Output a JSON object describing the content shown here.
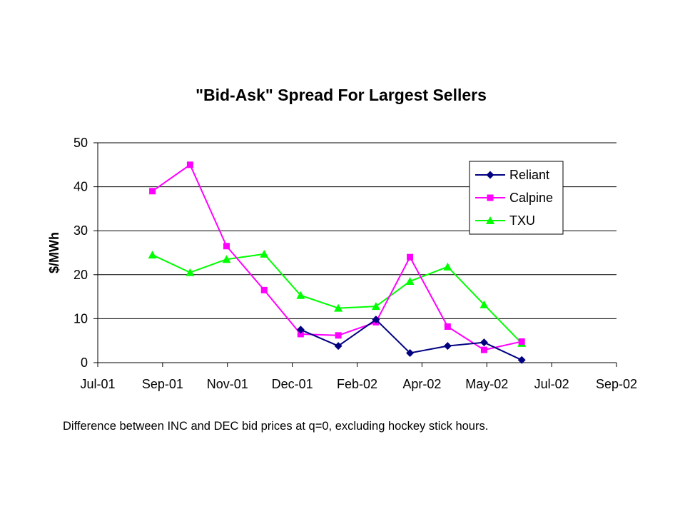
{
  "chart_data": {
    "type": "line",
    "title": "\"Bid-Ask\" Spread For Largest Sellers",
    "xlabel": "",
    "ylabel": "$/MWh",
    "x_ticks": [
      "Jul-01",
      "Sep-01",
      "Nov-01",
      "Dec-01",
      "Feb-02",
      "Apr-02",
      "May-02",
      "Jul-02",
      "Sep-02"
    ],
    "x_range": [
      "2001-07-01",
      "2002-09-01"
    ],
    "ylim": [
      0,
      50
    ],
    "y_ticks": [
      0,
      10,
      20,
      30,
      40,
      50
    ],
    "grid": "horizontal",
    "legend_position": "top-right",
    "x": [
      "2001-08-15",
      "2001-09-15",
      "2001-10-15",
      "2001-11-15",
      "2001-12-15",
      "2002-01-15",
      "2002-02-15",
      "2002-03-15",
      "2002-04-15",
      "2002-05-15",
      "2002-06-15"
    ],
    "series": [
      {
        "name": "Reliant",
        "color": "#000080",
        "marker": "diamond",
        "values": [
          null,
          null,
          null,
          null,
          7.5,
          3.8,
          9.8,
          2.2,
          3.8,
          4.6,
          0.6
        ]
      },
      {
        "name": "Calpine",
        "color": "#FF00FF",
        "marker": "square",
        "values": [
          39,
          45,
          26.5,
          16.5,
          6.5,
          6.2,
          9.2,
          24,
          8.2,
          2.9,
          4.8
        ]
      },
      {
        "name": "TXU",
        "color": "#00FF00",
        "marker": "triangle",
        "values": [
          24.5,
          20.5,
          23.5,
          24.7,
          15.3,
          12.4,
          12.8,
          18.5,
          21.8,
          13.2,
          4.4
        ]
      }
    ]
  },
  "footnote": "Difference between INC and DEC bid prices at q=0, excluding hockey stick hours."
}
